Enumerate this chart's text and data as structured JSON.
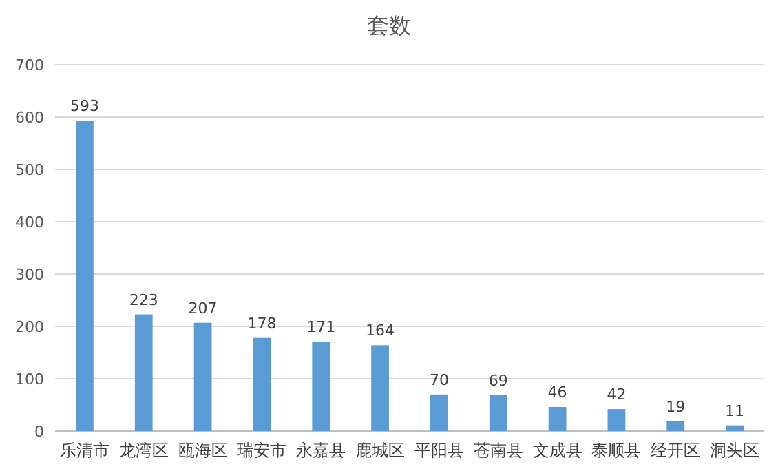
{
  "chart_data": {
    "type": "bar",
    "title": "套数",
    "categories": [
      "乐清市",
      "龙湾区",
      "瓯海区",
      "瑞安市",
      "永嘉县",
      "鹿城区",
      "平阳县",
      "苍南县",
      "文成县",
      "泰顺县",
      "经开区",
      "洞头区"
    ],
    "values": [
      593,
      223,
      207,
      178,
      171,
      164,
      70,
      69,
      46,
      42,
      19,
      11
    ],
    "color": "#5b9bd5",
    "ylim": [
      0,
      700
    ],
    "yticks": [
      0,
      100,
      200,
      300,
      400,
      500,
      600,
      700
    ],
    "grid": "y",
    "data_labels": true
  }
}
